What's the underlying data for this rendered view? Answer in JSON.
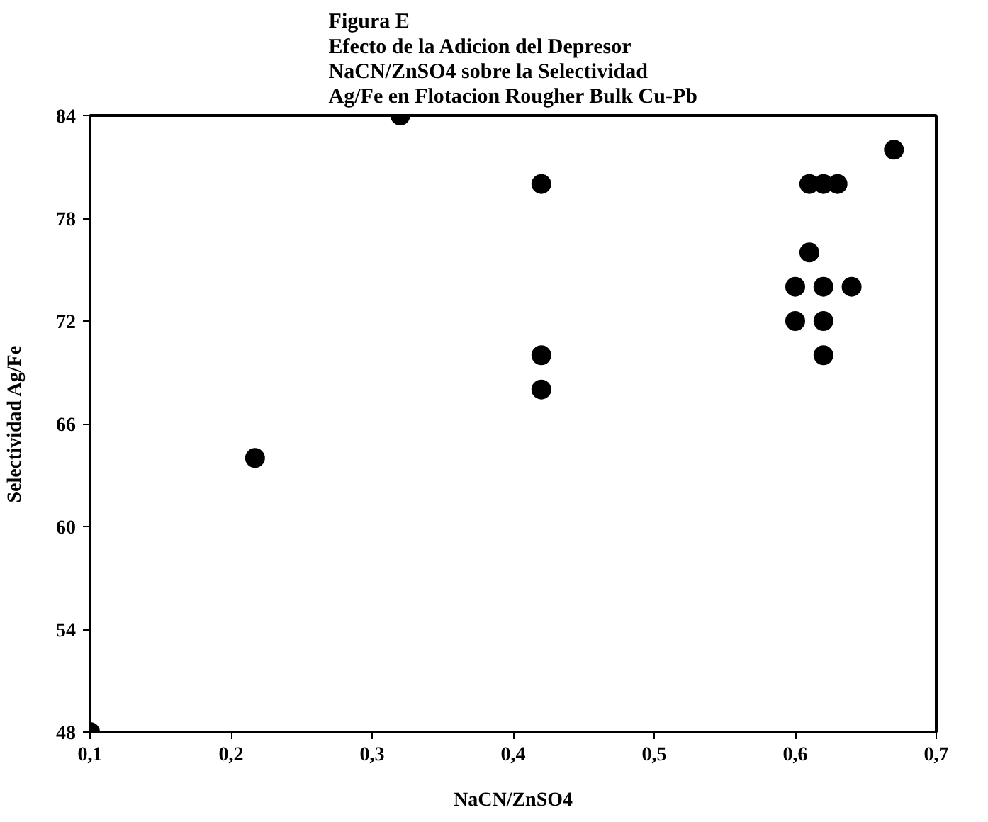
{
  "chart_data": {
    "type": "scatter",
    "title": "Figura E\nEfecto de la Adicion del Depresor\nNaCN/ZnSO4 sobre la Selectividad\nAg/Fe en Flotacion Rougher Bulk Cu-Pb",
    "xlabel": "NaCN/ZnSO4",
    "ylabel": "Selectividad Ag/Fe",
    "x": [
      0.1,
      0.217,
      0.32,
      0.42,
      0.42,
      0.42,
      0.61,
      0.62,
      0.63,
      0.61,
      0.6,
      0.62,
      0.64,
      0.6,
      0.62,
      0.62,
      0.67
    ],
    "values": [
      48,
      64,
      84,
      80,
      70,
      68,
      80,
      80,
      80,
      76,
      74,
      74,
      74,
      72,
      72,
      70,
      82
    ],
    "color": "#000000",
    "marker": "circle",
    "grid": false,
    "xlim": [
      0.1,
      0.7
    ],
    "ylim": [
      48,
      84
    ],
    "xticks": [
      {
        "value": 0.1,
        "label": "0,1"
      },
      {
        "value": 0.2,
        "label": "0,2"
      },
      {
        "value": 0.3,
        "label": "0,3"
      },
      {
        "value": 0.4,
        "label": "0,4"
      },
      {
        "value": 0.5,
        "label": "0,5"
      },
      {
        "value": 0.6,
        "label": "0,6"
      },
      {
        "value": 0.7,
        "label": "0,7"
      }
    ],
    "yticks": [
      48,
      54,
      60,
      66,
      72,
      78,
      84
    ]
  }
}
